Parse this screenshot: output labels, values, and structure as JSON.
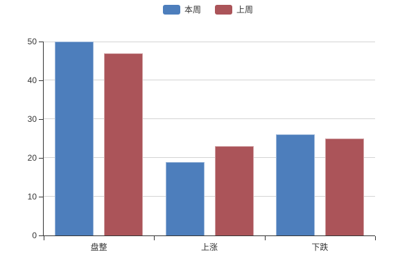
{
  "chart_data": {
    "type": "bar",
    "title": "",
    "xlabel": "",
    "ylabel": "",
    "categories": [
      "盘整",
      "上涨",
      "下跌"
    ],
    "series": [
      {
        "name": "本周",
        "color": "#4d7ebc",
        "values": [
          50,
          19,
          26
        ]
      },
      {
        "name": "上周",
        "color": "#ab5459",
        "values": [
          47,
          23,
          25
        ]
      }
    ],
    "ylim": [
      0,
      50
    ],
    "y_ticks": [
      0,
      10,
      20,
      30,
      40,
      50
    ],
    "grid": true,
    "legend_position": "top-center"
  },
  "colors": {
    "background": "#ffffff",
    "axis_line": "#333333",
    "gridline": "#d3d3d3",
    "label_text": "#333333"
  }
}
